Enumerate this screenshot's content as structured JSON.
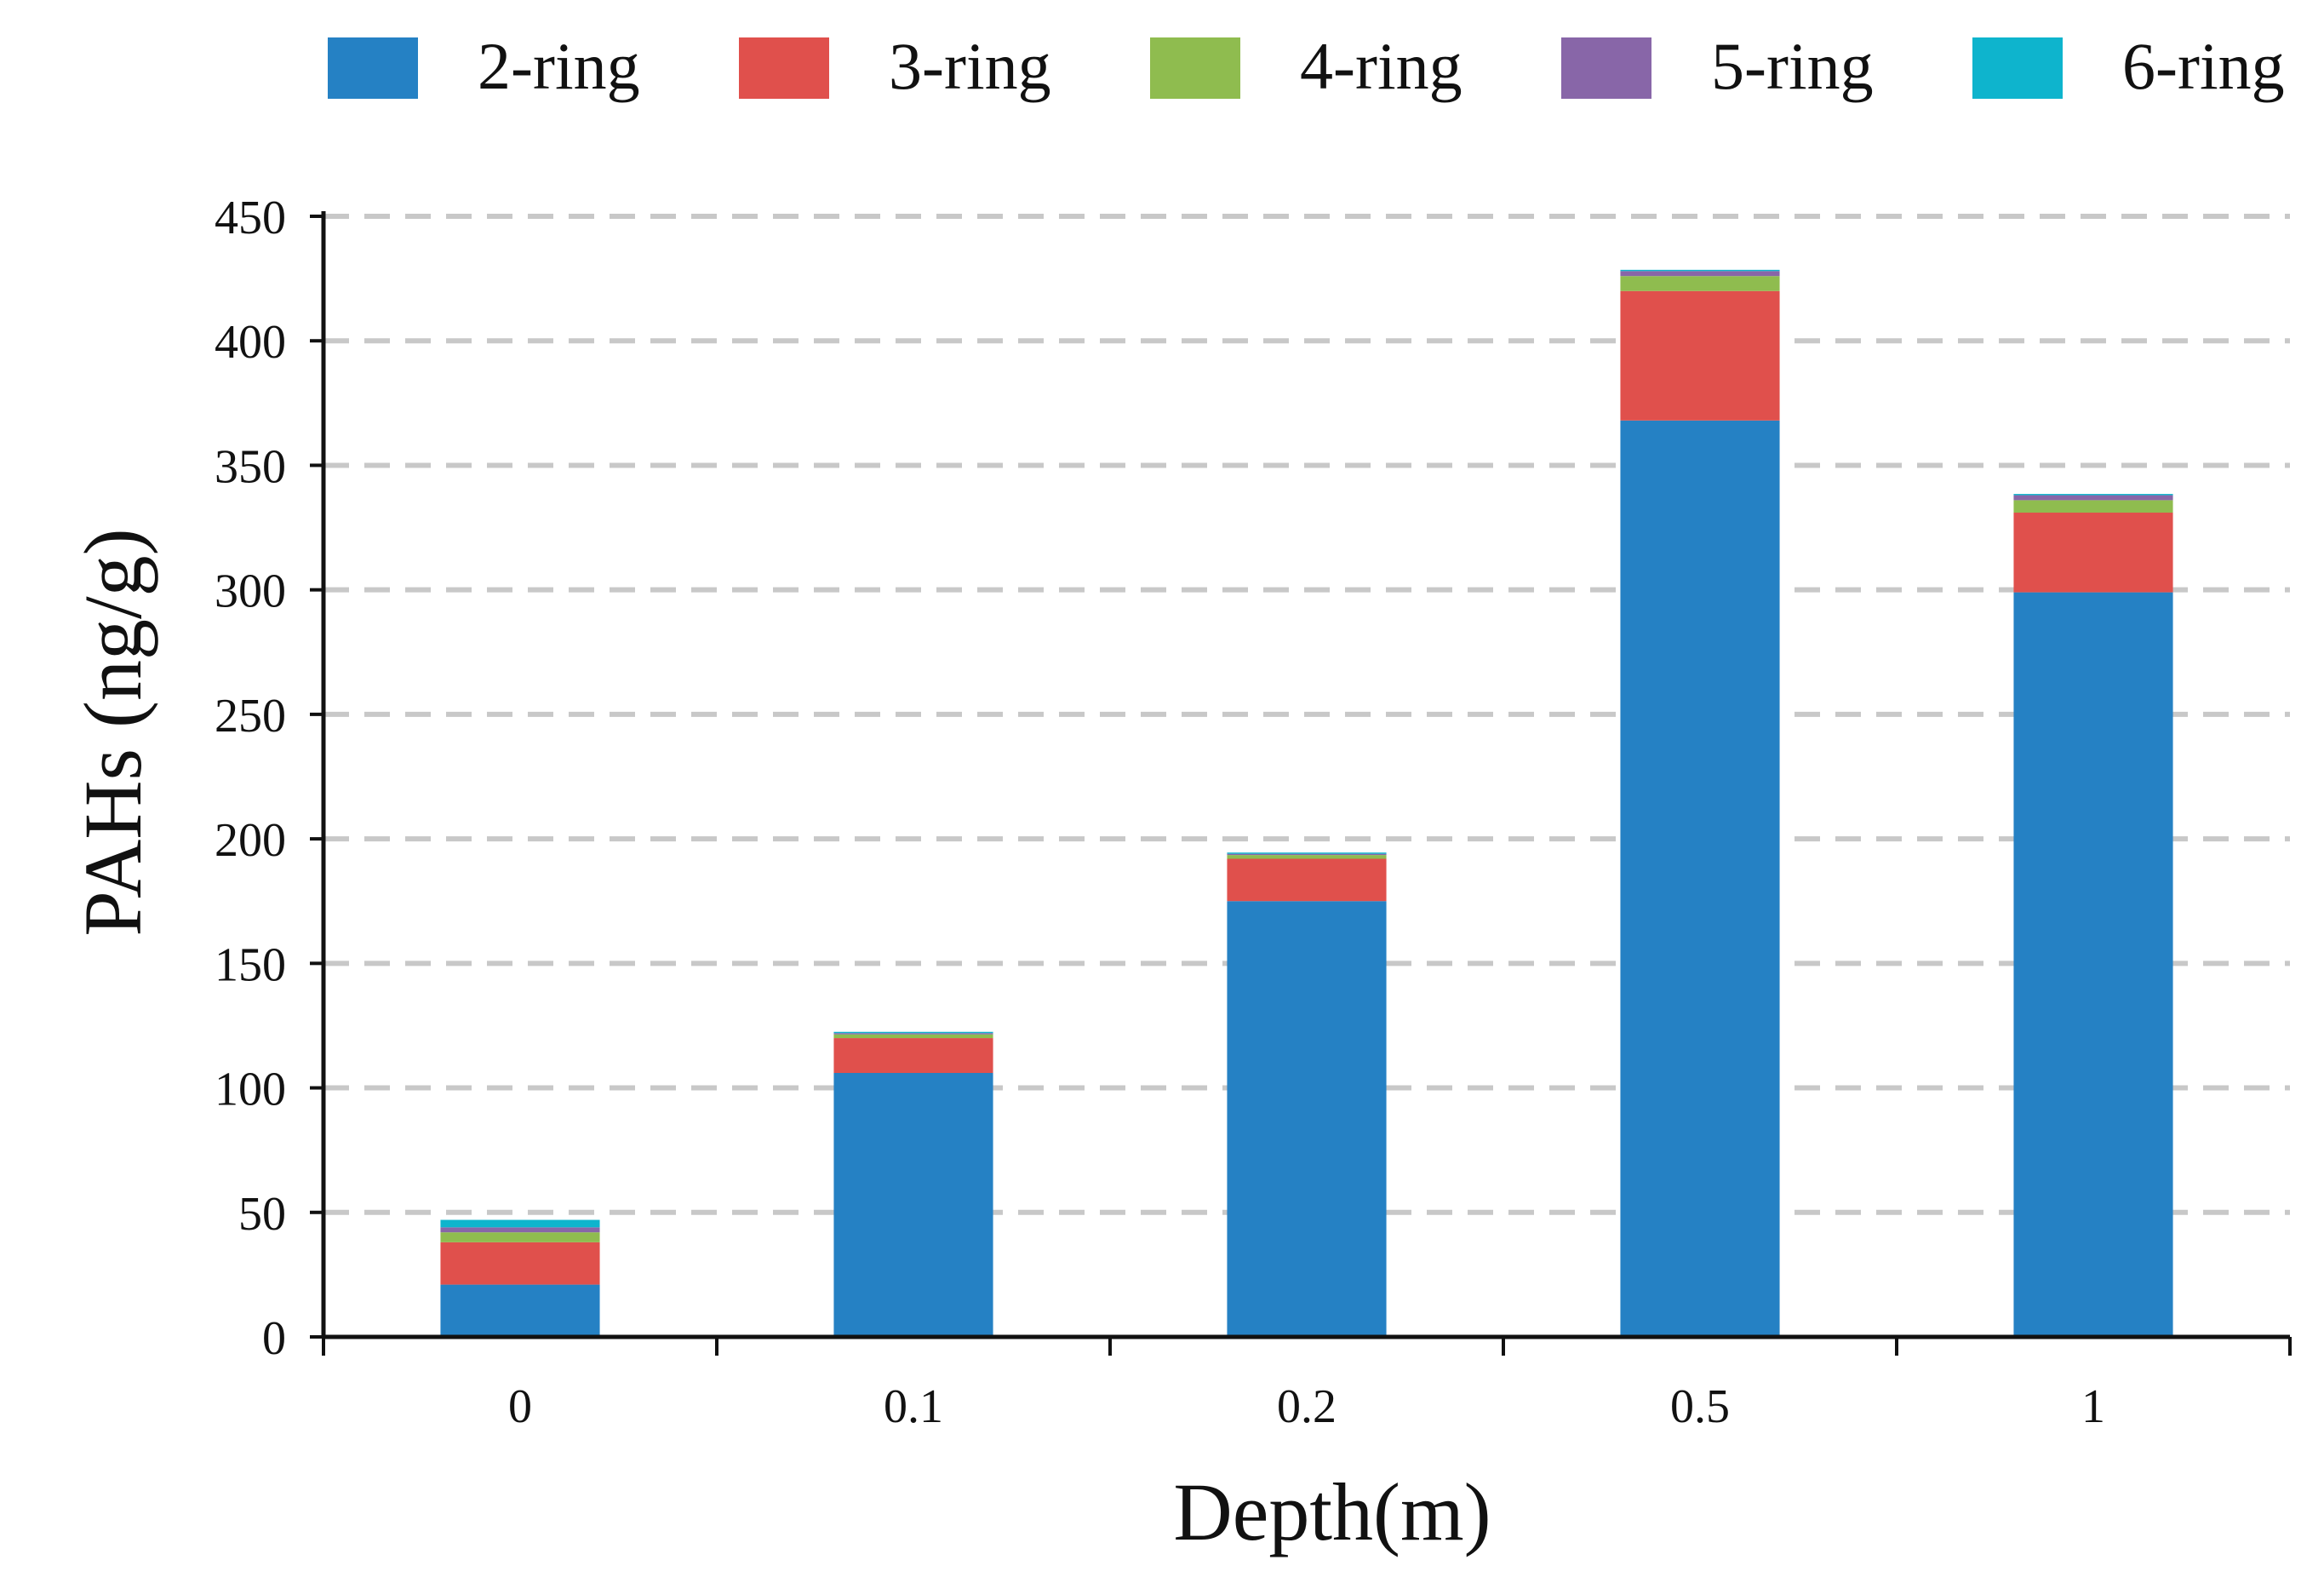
{
  "chart_data": {
    "type": "bar",
    "stacked": true,
    "title": "",
    "xlabel": "Depth(m)",
    "ylabel": "PAHs (ng/g)",
    "categories": [
      "0",
      "0.1",
      "0.2",
      "0.5",
      "1"
    ],
    "series": [
      {
        "name": "2-ring",
        "color": "#2581c4",
        "values": [
          21,
          106,
          175,
          368,
          299
        ]
      },
      {
        "name": "3-ring",
        "color": "#e0504c",
        "values": [
          17,
          14,
          17,
          52,
          32
        ]
      },
      {
        "name": "4-ring",
        "color": "#8fbc4f",
        "values": [
          4,
          1.5,
          1.5,
          6,
          5
        ]
      },
      {
        "name": "5-ring",
        "color": "#8866a8",
        "values": [
          2,
          0.5,
          0.5,
          2,
          2
        ]
      },
      {
        "name": "6-ring",
        "color": "#0eb4cd",
        "values": [
          3,
          0.5,
          0.5,
          0.5,
          0.5
        ]
      }
    ],
    "ylim": [
      0,
      450
    ],
    "yticks": [
      0,
      50,
      100,
      150,
      200,
      250,
      300,
      350,
      400,
      450
    ],
    "grid": "horizontal-dashed",
    "legend": {
      "position": "top"
    }
  }
}
